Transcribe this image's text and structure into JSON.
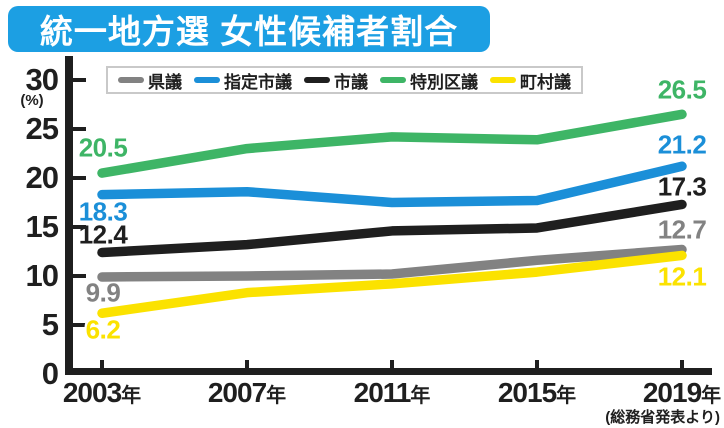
{
  "title": "統一地方選 女性候補者割合",
  "source_note": "(総務省発表より)",
  "colors": {
    "title_bg": "#1c9fe3",
    "title_text": "#ffffff",
    "axis": "#1f1f1f",
    "legend_border": "#c9c9c9",
    "background": "#ffffff"
  },
  "chart_data": {
    "type": "line",
    "title": "統一地方選 女性候補者割合",
    "categories": [
      "2003年",
      "2007年",
      "2011年",
      "2015年",
      "2019年"
    ],
    "y_ticks": [
      30,
      25,
      20,
      15,
      10,
      5,
      0
    ],
    "ylim": [
      0,
      30
    ],
    "ylabel": "(%)",
    "grid": false,
    "legend_position": "top",
    "series": [
      {
        "key": "prefectural-assembly",
        "name": "県議",
        "color": "#828282",
        "values": [
          9.9,
          10.0,
          10.2,
          11.6,
          12.7
        ],
        "start_label": "9.9",
        "end_label": "12.7",
        "outlined_labels": false
      },
      {
        "key": "designated-city-assembly",
        "name": "指定市議",
        "color": "#1b8fd8",
        "values": [
          18.3,
          18.6,
          17.5,
          17.7,
          21.2
        ],
        "start_label": "18.3",
        "end_label": "21.2",
        "outlined_labels": false
      },
      {
        "key": "city-assembly",
        "name": "市議",
        "color": "#1f1f1f",
        "values": [
          12.4,
          13.2,
          14.6,
          14.9,
          17.3
        ],
        "start_label": "12.4",
        "end_label": "17.3",
        "outlined_labels": false
      },
      {
        "key": "special-ward-assembly",
        "name": "特別区議",
        "color": "#3eb566",
        "values": [
          20.5,
          23.0,
          24.2,
          23.9,
          26.5
        ],
        "start_label": "20.5",
        "end_label": "26.5",
        "outlined_labels": false
      },
      {
        "key": "town-village-assembly",
        "name": "町村議",
        "color": "#fbe200",
        "values": [
          6.2,
          8.3,
          9.2,
          10.4,
          12.1
        ],
        "start_label": "6.2",
        "end_label": "12.1",
        "outlined_labels": true
      }
    ]
  }
}
